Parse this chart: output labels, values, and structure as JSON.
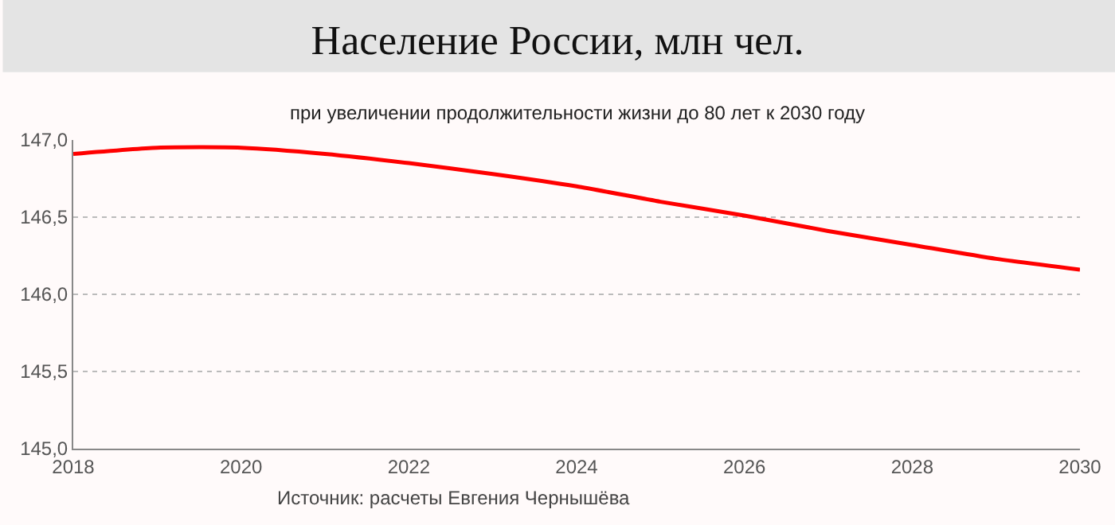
{
  "chart_data": {
    "type": "line",
    "title": "Население России, млн чел.",
    "subtitle": "при увеличении продолжительности жизни до 80 лет к 2030 году",
    "x": [
      2018,
      2019,
      2020,
      2021,
      2022,
      2023,
      2024,
      2025,
      2026,
      2027,
      2028,
      2029,
      2030
    ],
    "series": [
      {
        "color": "#ff0000",
        "values": [
          146.91,
          146.95,
          146.95,
          146.91,
          146.85,
          146.78,
          146.7,
          146.6,
          146.51,
          146.41,
          146.32,
          146.23,
          146.16
        ]
      }
    ],
    "xlim": [
      2018,
      2030
    ],
    "xticks": [
      2018,
      2020,
      2022,
      2024,
      2026,
      2028,
      2030
    ],
    "ylim": [
      145,
      147
    ],
    "yticks": [
      {
        "value": 145,
        "label": "145,0"
      },
      {
        "value": 145.5,
        "label": "145,5"
      },
      {
        "value": 146,
        "label": "146,0"
      },
      {
        "value": 146.5,
        "label": "146,5"
      },
      {
        "value": 147,
        "label": "147,0"
      }
    ],
    "grid": "y",
    "annotations": [
      "Источник: расчеты Евгения Чернышёва"
    ]
  }
}
